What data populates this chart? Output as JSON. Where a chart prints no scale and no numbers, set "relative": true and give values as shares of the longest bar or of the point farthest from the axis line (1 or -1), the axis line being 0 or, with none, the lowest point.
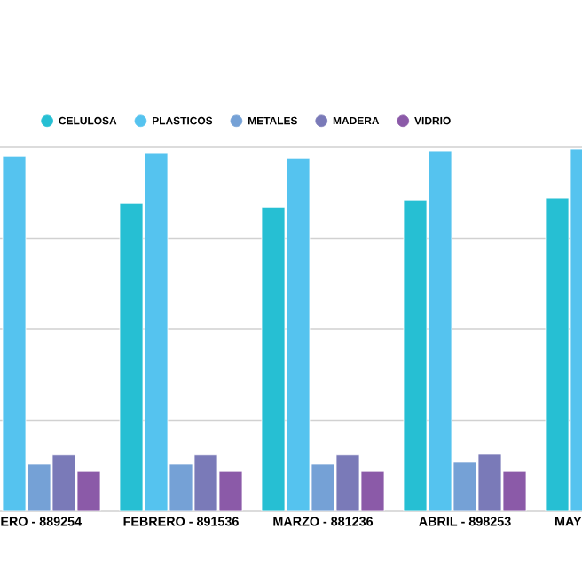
{
  "chart_data": {
    "type": "bar",
    "relative": true,
    "grid": true,
    "legend": "top",
    "categories": [
      "ERO - 889254",
      "FEBRERO - 891536",
      "MARZO - 881236",
      "ABRIL - 898253",
      "MAY"
    ],
    "series": [
      {
        "name": "CELULOSA",
        "color": "#26bfd3",
        "values": [
          null,
          0.85,
          0.84,
          0.86,
          0.865
        ]
      },
      {
        "name": "PLASTICOS",
        "color": "#55c3ef",
        "values": [
          0.98,
          0.99,
          0.975,
          0.995,
          1.0
        ]
      },
      {
        "name": "METALES",
        "color": "#75a1d6",
        "values": [
          0.13,
          0.13,
          0.13,
          0.135,
          null
        ]
      },
      {
        "name": "MADERA",
        "color": "#7a7ab8",
        "values": [
          0.155,
          0.155,
          0.155,
          0.157,
          null
        ]
      },
      {
        "name": "VIDRIO",
        "color": "#8b5aa8",
        "values": [
          0.11,
          0.11,
          0.11,
          0.11,
          null
        ]
      }
    ]
  }
}
